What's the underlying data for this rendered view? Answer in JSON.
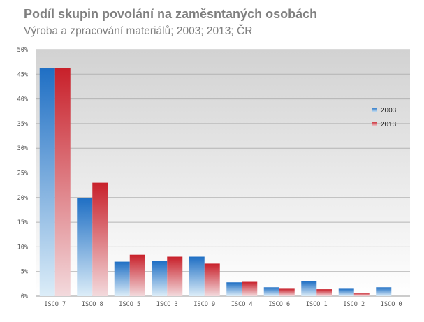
{
  "chart_data": {
    "type": "bar",
    "title": "Podíl skupin povolání na zaměsntaných osobách",
    "subtitle": "Výroba a zpracování materiálů; 2003; 2013; ČR",
    "categories": [
      "ISCO 7",
      "ISCO 8",
      "ISCO 5",
      "ISCO 3",
      "ISCO 9",
      "ISCO 4",
      "ISCO 6",
      "ISCO 1",
      "ISCO 2",
      "ISCO 0"
    ],
    "series": [
      {
        "name": "2003",
        "values": [
          46.3,
          19.9,
          7.0,
          7.1,
          8.0,
          2.8,
          1.8,
          3.0,
          1.5,
          1.8
        ],
        "color": "#1f6fc4"
      },
      {
        "name": "2013",
        "values": [
          46.3,
          23.0,
          8.4,
          8.0,
          6.6,
          2.9,
          1.5,
          1.4,
          0.7,
          0.0
        ],
        "color": "#c8202a"
      }
    ],
    "y_ticks": [
      "0%",
      "5%",
      "10%",
      "15%",
      "20%",
      "25%",
      "30%",
      "35%",
      "40%",
      "45%",
      "50%"
    ],
    "ylim": [
      0,
      50
    ],
    "grid": true,
    "legend": "right"
  }
}
